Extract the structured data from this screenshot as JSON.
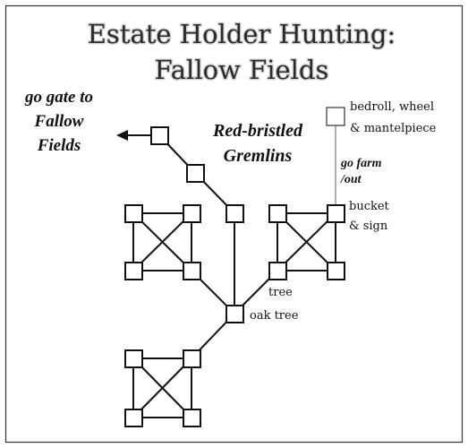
{
  "title": {
    "line1": "Estate Holder Hunting:",
    "line2": "Fallow Fields"
  },
  "exit_label": {
    "line1": "go gate to",
    "line2": "Fallow",
    "line3": "Fields"
  },
  "monster_label": {
    "line1": "Red-bristled",
    "line2": "Gremlins"
  },
  "farm_items": {
    "line1": "bedroll, wheel",
    "line2": "& mantelpiece"
  },
  "farm_path": {
    "line1": "go farm",
    "line2": "/out"
  },
  "bucket_label": {
    "line1": "bucket",
    "line2": "& sign"
  },
  "tree_label": "tree",
  "oak_label": "oak tree"
}
